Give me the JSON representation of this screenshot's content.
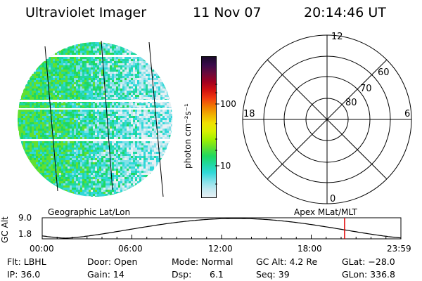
{
  "header": {
    "instrument": "Ultraviolet Imager",
    "date": "11 Nov 07",
    "time": "20:14:46 UT"
  },
  "colorbar": {
    "unit_label": "photon cm⁻²s⁻¹",
    "ticks": [
      "100",
      "10"
    ],
    "colors": [
      "#1a0a2a",
      "#3a0a4a",
      "#6a0a3a",
      "#a00020",
      "#d01010",
      "#f03a10",
      "#f07a00",
      "#f0b000",
      "#f0e000",
      "#d8f000",
      "#a0f000",
      "#60e030",
      "#20d860",
      "#20d8a0",
      "#30d8d8",
      "#80e0e8",
      "#c0e8f0",
      "#e8f0f4"
    ]
  },
  "polar_plot": {
    "label_top": "12",
    "label_left": "18",
    "label_right": "6",
    "label_bottom": "0",
    "ring_labels": [
      "60",
      "70",
      "80"
    ]
  },
  "timeline": {
    "left_title": "Geographic Lat/Lon",
    "right_title": "Apex MLat/MLT",
    "y_axis_label": "GC Alt",
    "y_top": "9.0",
    "y_bottom": "1.8",
    "x_ticks": [
      "00:00",
      "06:00",
      "12:00",
      "18:00",
      "23:59"
    ],
    "current_time_fraction": 0.843
  },
  "footer": {
    "filter": "Flt: LBHL",
    "door": "Door: Open",
    "mode": "Mode: Normal",
    "gc_alt": "GC Alt: 4.2 Re",
    "glat": "GLat: −28.0",
    "ip": "IP: 36.0",
    "gain": "Gain: 14",
    "dsp_label": "Dsp:",
    "dsp_value": "6.1",
    "seq": "Seq: 39",
    "glon": "GLon: 336.8"
  }
}
